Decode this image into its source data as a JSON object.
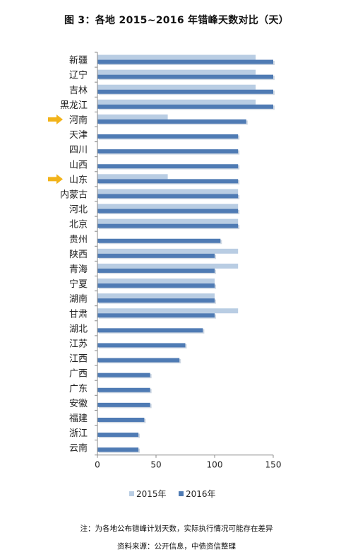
{
  "title": "图 3：各地 2015~2016 年错峰天数对比（天）",
  "note": "注：为各地公布错峰计划天数，实际执行情况可能存在差异",
  "source": "资料来源：公开信息，中债资信整理",
  "colors": {
    "series_2015": "#b9cde3",
    "series_2016": "#4f7bb4",
    "marker": "#f2b319",
    "axis": "#888888",
    "text": "#222222"
  },
  "chart_data": {
    "type": "bar",
    "orientation": "horizontal",
    "categories": [
      "新疆",
      "辽宁",
      "吉林",
      "黑龙江",
      "河南",
      "天津",
      "四川",
      "山西",
      "山东",
      "内蒙古",
      "河北",
      "北京",
      "贵州",
      "陕西",
      "青海",
      "宁夏",
      "湖南",
      "甘肃",
      "湖北",
      "江苏",
      "江西",
      "广西",
      "广东",
      "安徽",
      "福建",
      "浙江",
      "云南"
    ],
    "highlighted_categories": [
      "河南",
      "山东"
    ],
    "series": [
      {
        "name": "2015年",
        "values": [
          135,
          135,
          135,
          135,
          60,
          null,
          null,
          null,
          60,
          120,
          120,
          120,
          null,
          120,
          120,
          100,
          100,
          120,
          null,
          null,
          null,
          null,
          null,
          null,
          null,
          null,
          null
        ]
      },
      {
        "name": "2016年",
        "values": [
          150,
          150,
          150,
          150,
          127,
          120,
          120,
          120,
          120,
          120,
          120,
          120,
          105,
          100,
          100,
          100,
          100,
          100,
          90,
          75,
          70,
          45,
          45,
          45,
          40,
          35,
          35
        ]
      }
    ],
    "xlim": [
      0,
      150
    ],
    "xticks": [
      0,
      50,
      100,
      150
    ],
    "legend_position": "bottom"
  }
}
